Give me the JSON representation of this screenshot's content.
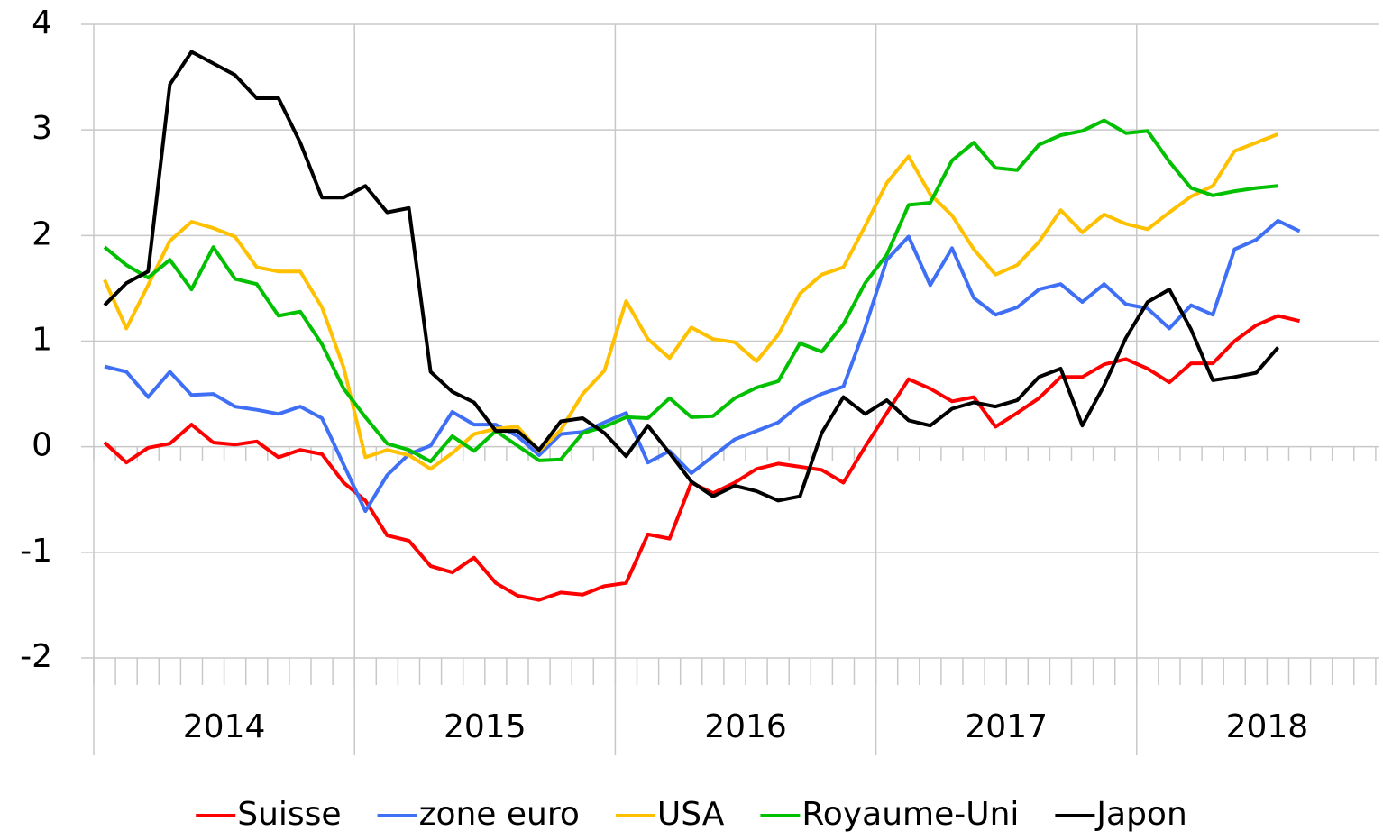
{
  "chart_data": {
    "type": "line",
    "categories": [
      null,
      null,
      null,
      null,
      null,
      null,
      null,
      null,
      null,
      null,
      null,
      null,
      null,
      null,
      null,
      null,
      null,
      null,
      null,
      null,
      null,
      null,
      null,
      null,
      null,
      null,
      null,
      null,
      null,
      null,
      null,
      null,
      null,
      null,
      null,
      null,
      null,
      null,
      null,
      null,
      null,
      null,
      null,
      null,
      null,
      null,
      null,
      null,
      null,
      null,
      null,
      null,
      null,
      null,
      null,
      null,
      null,
      null,
      null,
      null
    ],
    "x_groups": [
      "2014",
      "2015",
      "2016",
      "2017",
      "2018"
    ],
    "ylim": [
      -2,
      4
    ],
    "yticks": [
      -2,
      -1,
      0,
      1,
      2,
      3,
      4
    ],
    "grid": true,
    "legend": "bottom",
    "series": [
      {
        "name": "Suisse",
        "color": "#ff0000",
        "values": [
          0.04,
          -0.15,
          -0.01,
          0.03,
          0.21,
          0.04,
          0.02,
          0.05,
          -0.1,
          -0.03,
          -0.07,
          -0.34,
          -0.51,
          -0.84,
          -0.89,
          -1.13,
          -1.19,
          -1.05,
          -1.29,
          -1.41,
          -1.45,
          -1.38,
          -1.4,
          -1.32,
          -1.29,
          -0.83,
          -0.87,
          -0.34,
          -0.44,
          -0.34,
          -0.21,
          -0.16,
          -0.19,
          -0.22,
          -0.34,
          0.0,
          0.32,
          0.64,
          0.55,
          0.43,
          0.47,
          0.19,
          0.32,
          0.46,
          0.66,
          0.66,
          0.78,
          0.83,
          0.74,
          0.61,
          0.79,
          0.79,
          1.0,
          1.15,
          1.24,
          1.19,
          null,
          null,
          null,
          null
        ]
      },
      {
        "name": "zone euro",
        "color": "#3f6ff5",
        "values": [
          0.76,
          0.71,
          0.47,
          0.71,
          0.49,
          0.5,
          0.38,
          0.35,
          0.31,
          0.38,
          0.27,
          -0.17,
          -0.61,
          -0.27,
          -0.07,
          0.01,
          0.33,
          0.21,
          0.21,
          0.1,
          -0.08,
          0.12,
          0.14,
          0.23,
          0.32,
          -0.15,
          -0.04,
          -0.25,
          -0.09,
          0.07,
          0.15,
          0.23,
          0.4,
          0.5,
          0.57,
          1.13,
          1.77,
          1.99,
          1.53,
          1.88,
          1.41,
          1.25,
          1.32,
          1.49,
          1.54,
          1.37,
          1.54,
          1.35,
          1.31,
          1.12,
          1.34,
          1.25,
          1.87,
          1.96,
          2.14,
          2.04,
          null,
          null,
          null,
          null
        ]
      },
      {
        "name": "USA",
        "color": "#ffc000",
        "values": [
          1.58,
          1.12,
          1.53,
          1.95,
          2.13,
          2.07,
          1.99,
          1.7,
          1.66,
          1.66,
          1.32,
          0.75,
          -0.1,
          -0.03,
          -0.08,
          -0.21,
          -0.06,
          0.12,
          0.17,
          0.19,
          -0.04,
          0.16,
          0.5,
          0.72,
          1.38,
          1.02,
          0.84,
          1.13,
          1.02,
          0.99,
          0.81,
          1.06,
          1.45,
          1.63,
          1.7,
          2.09,
          2.5,
          2.75,
          2.39,
          2.19,
          1.87,
          1.63,
          1.72,
          1.94,
          2.24,
          2.03,
          2.2,
          2.11,
          2.06,
          2.22,
          2.37,
          2.47,
          2.8,
          2.88,
          2.96,
          null,
          null,
          null,
          null,
          null
        ]
      },
      {
        "name": "Royaume-Uni",
        "color": "#00c000",
        "values": [
          1.89,
          1.72,
          1.6,
          1.77,
          1.49,
          1.89,
          1.59,
          1.54,
          1.24,
          1.28,
          0.97,
          0.55,
          0.28,
          0.03,
          -0.03,
          -0.14,
          0.1,
          -0.04,
          0.15,
          0.01,
          -0.13,
          -0.12,
          0.13,
          0.19,
          0.28,
          0.27,
          0.46,
          0.28,
          0.29,
          0.46,
          0.56,
          0.62,
          0.98,
          0.9,
          1.16,
          1.55,
          1.82,
          2.29,
          2.31,
          2.71,
          2.88,
          2.64,
          2.62,
          2.86,
          2.95,
          2.99,
          3.09,
          2.97,
          2.99,
          2.7,
          2.45,
          2.38,
          2.42,
          2.45,
          2.47,
          null,
          null,
          null,
          null,
          null
        ]
      },
      {
        "name": "Japon",
        "color": "#000000",
        "values": [
          1.34,
          1.55,
          1.66,
          3.43,
          3.74,
          3.63,
          3.52,
          3.3,
          3.3,
          2.88,
          2.36,
          2.36,
          2.47,
          2.22,
          2.26,
          0.71,
          0.52,
          0.42,
          0.15,
          0.15,
          -0.03,
          0.24,
          0.27,
          0.13,
          -0.09,
          0.2,
          -0.06,
          -0.33,
          -0.47,
          -0.37,
          -0.42,
          -0.51,
          -0.47,
          0.13,
          0.47,
          0.31,
          0.44,
          0.25,
          0.2,
          0.36,
          0.42,
          0.38,
          0.44,
          0.66,
          0.74,
          0.2,
          0.58,
          1.03,
          1.37,
          1.49,
          1.11,
          0.63,
          0.66,
          0.7,
          0.94,
          null,
          null,
          null,
          null,
          null
        ]
      }
    ]
  }
}
